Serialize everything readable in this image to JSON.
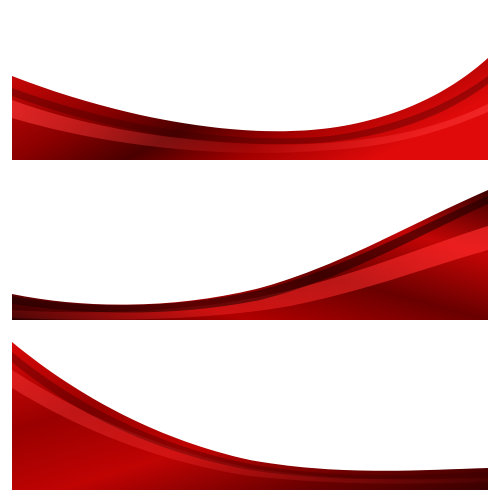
{
  "palette": {
    "background": "#ffffff",
    "red_bright": "#e10a0a",
    "red_main": "#c40000",
    "red_mid": "#9e0000",
    "red_dark": "#5a0000",
    "red_deep": "#2a0000",
    "sheen": "#ff3a3a"
  },
  "banners": [
    {
      "name": "top-wave-banner",
      "style": "concave-arc"
    },
    {
      "name": "middle-wave-banner",
      "style": "rising-s-curve"
    },
    {
      "name": "bottom-wave-banner",
      "style": "descending-curve"
    }
  ]
}
